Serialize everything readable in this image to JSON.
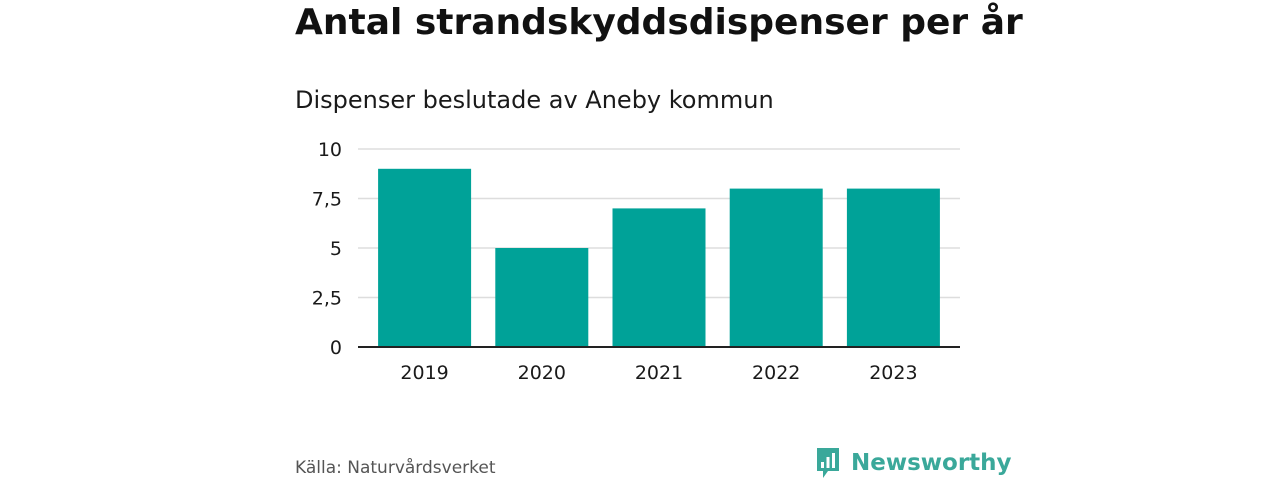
{
  "title": "Antal strandskyddsdispenser per år",
  "subtitle": "Dispenser beslutade av Aneby kommun",
  "source": "Källa: Naturvårdsverket",
  "brand": {
    "name": "Newsworthy",
    "icon": "newsworthy-logo-icon",
    "color": "#3aa89a"
  },
  "colors": {
    "bar": "#00a298",
    "grid": "#dddddd",
    "axis": "#222222"
  },
  "chart_data": {
    "type": "bar",
    "title": "Antal strandskyddsdispenser per år",
    "subtitle": "Dispenser beslutade av Aneby kommun",
    "xlabel": "",
    "ylabel": "",
    "categories": [
      "2019",
      "2020",
      "2021",
      "2022",
      "2023"
    ],
    "values": [
      9,
      5,
      7,
      8,
      8
    ],
    "ylim": [
      0,
      10
    ],
    "yticks": [
      0,
      2.5,
      5,
      7.5,
      10
    ],
    "ytick_labels": [
      "0",
      "2,5",
      "5",
      "7,5",
      "10"
    ],
    "grid": true,
    "legend": "none"
  }
}
